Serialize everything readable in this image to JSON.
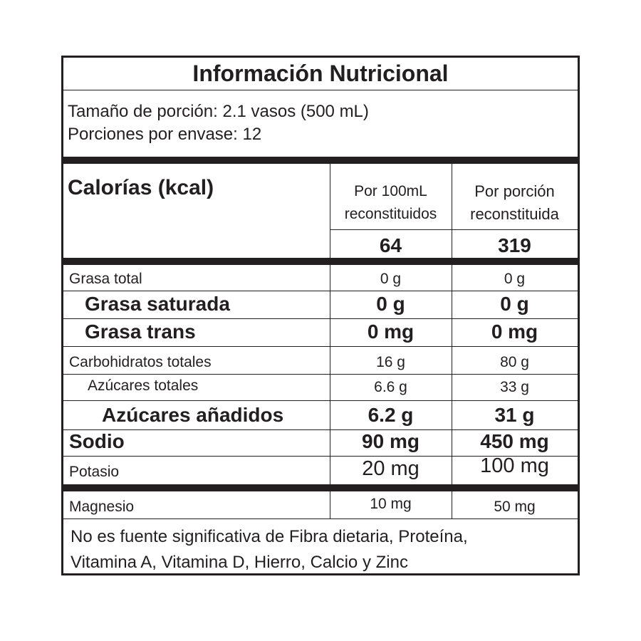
{
  "title": "Información Nutricional",
  "serving_size": "Tamaño de porción: 2.1 vasos (500 mL)",
  "servings_per_container": "Porciones por envase: 12",
  "calories": {
    "label": "Calorías (kcal)",
    "col1_header_1": "Por 100mL",
    "col1_header_2": "reconstituidos",
    "col2_header_1": "Por porción",
    "col2_header_2": "reconstituida",
    "col1_value": "64",
    "col2_value": "319"
  },
  "rows": [
    {
      "name": "Grasa total",
      "per100": "0 g",
      "perserving": "0 g"
    },
    {
      "name": "Grasa saturada",
      "per100": "0 g",
      "perserving": "0 g"
    },
    {
      "name": "Grasa trans",
      "per100": "0 mg",
      "perserving": "0 mg"
    },
    {
      "name": "Carbohidratos totales",
      "per100": "16 g",
      "perserving": "80 g"
    },
    {
      "name": "Azúcares totales",
      "per100": "6.6 g",
      "perserving": "33 g"
    },
    {
      "name": "Azúcares añadidos",
      "per100": "6.2 g",
      "perserving": "31 g"
    },
    {
      "name": "Sodio",
      "per100": "90 mg",
      "perserving": "450 mg"
    },
    {
      "name": "Potasio",
      "per100": "20 mg",
      "perserving": "100 mg"
    },
    {
      "name": "Magnesio",
      "per100": "10 mg",
      "perserving": "50 mg"
    }
  ],
  "footer_line1": "No es fuente significativa de Fibra dietaria, Proteína,",
  "footer_line2": "Vitamina A, Vitamina D, Hierro, Calcio y Zinc"
}
